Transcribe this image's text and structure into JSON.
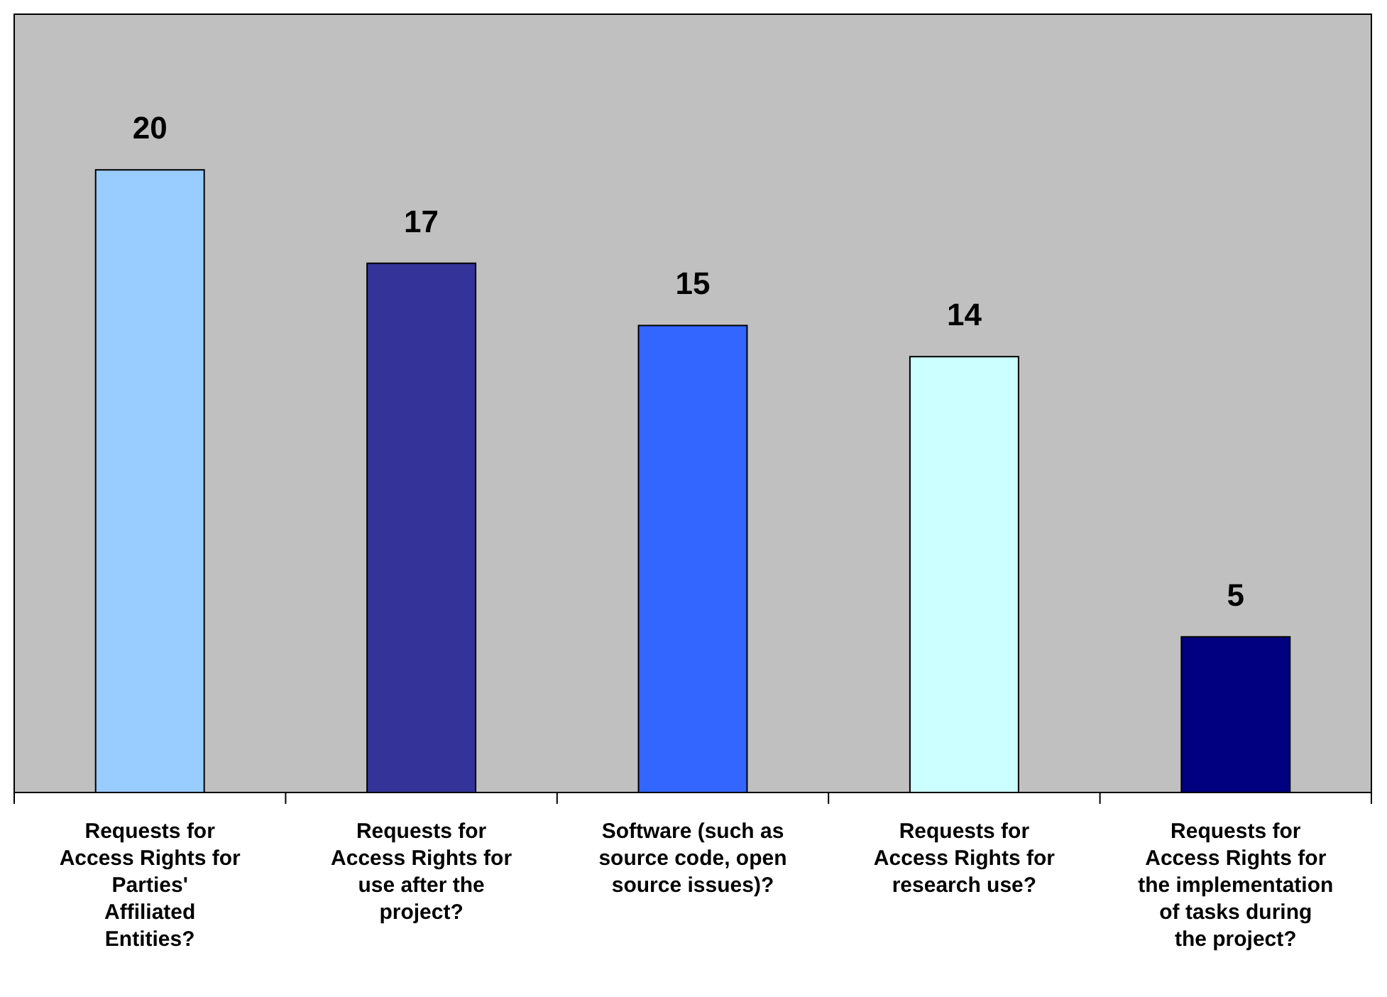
{
  "chart_data": {
    "type": "bar",
    "categories": [
      "Requests for Access Rights for Parties' Affiliated Entities?",
      "Requests for Access Rights for use after the project?",
      "Software (such as source code, open source issues)?",
      "Requests for Access Rights for research use?",
      "Requests for Access Rights for the implementation of tasks during the project?"
    ],
    "values": [
      20,
      17,
      15,
      14,
      5
    ],
    "colors": [
      "#99ccff",
      "#333399",
      "#3366ff",
      "#ccffff",
      "#000080"
    ],
    "ylim": [
      0,
      25
    ],
    "data_labels": true
  }
}
